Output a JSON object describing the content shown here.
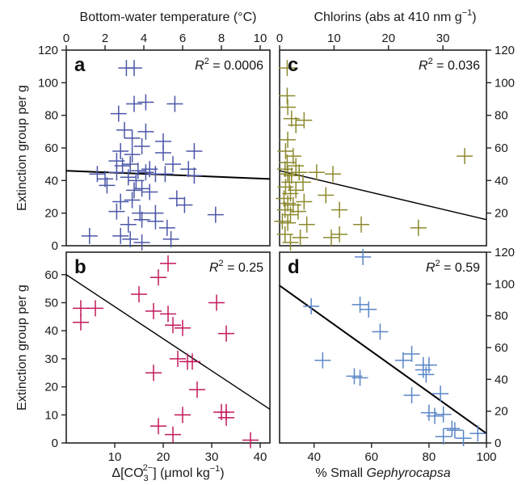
{
  "chart_data": [
    {
      "type": "scatter",
      "panel": "a",
      "top_xlabel": "Bottom-water temperature (°C)",
      "xlim": [
        0,
        10.5
      ],
      "ylim": [
        0,
        120
      ],
      "xticks": [
        0,
        2,
        4,
        6,
        8,
        10
      ],
      "yticks": [
        0,
        20,
        40,
        60,
        80,
        100,
        120
      ],
      "ylabel": "Extinction group per g",
      "color": "#4b57a8",
      "r2": "= 0.0006",
      "trend": [
        [
          0,
          46
        ],
        [
          10.5,
          41
        ]
      ],
      "points": [
        [
          3.1,
          109
        ],
        [
          3.5,
          109
        ],
        [
          2.7,
          81
        ],
        [
          3.5,
          87
        ],
        [
          4.1,
          88
        ],
        [
          5.6,
          87
        ],
        [
          3.0,
          71
        ],
        [
          4.1,
          70
        ],
        [
          3.4,
          66
        ],
        [
          5.0,
          64
        ],
        [
          3.9,
          61
        ],
        [
          2.8,
          58
        ],
        [
          3.4,
          56
        ],
        [
          5.0,
          57
        ],
        [
          6.6,
          58
        ],
        [
          2.6,
          52
        ],
        [
          2.9,
          49
        ],
        [
          3.3,
          50
        ],
        [
          3.7,
          46
        ],
        [
          4.3,
          47
        ],
        [
          5.5,
          50
        ],
        [
          6.3,
          47
        ],
        [
          1.6,
          44
        ],
        [
          2.6,
          45
        ],
        [
          3.2,
          42
        ],
        [
          4.1,
          45
        ],
        [
          4.6,
          44
        ],
        [
          5.1,
          44
        ],
        [
          6.6,
          43
        ],
        [
          2.0,
          41
        ],
        [
          3.6,
          40
        ],
        [
          2.1,
          37
        ],
        [
          3.5,
          34
        ],
        [
          3.9,
          35
        ],
        [
          4.3,
          33
        ],
        [
          2.8,
          27
        ],
        [
          3.4,
          28
        ],
        [
          6.1,
          25
        ],
        [
          5.7,
          29
        ],
        [
          2.6,
          21
        ],
        [
          3.8,
          20
        ],
        [
          4.6,
          20
        ],
        [
          7.7,
          19
        ],
        [
          3.9,
          16
        ],
        [
          4.6,
          15
        ],
        [
          3.2,
          13
        ],
        [
          5.2,
          11
        ],
        [
          1.2,
          6
        ],
        [
          2.8,
          6
        ],
        [
          3.3,
          4
        ],
        [
          5.4,
          4
        ],
        [
          3.9,
          2
        ]
      ]
    },
    {
      "type": "scatter",
      "panel": "c",
      "top_xlabel": "Chlorins (abs at 410 nm g−1)",
      "xlim": [
        0,
        38
      ],
      "ylim": [
        0,
        120
      ],
      "xticks": [
        0,
        10,
        20,
        30
      ],
      "yticks": [
        20,
        40,
        60,
        80,
        100,
        120
      ],
      "color": "#8c8a2e",
      "r2": "= 0.036",
      "trend": [
        [
          0,
          46
        ],
        [
          38,
          16
        ]
      ],
      "points": [
        [
          1.4,
          109
        ],
        [
          1.4,
          92
        ],
        [
          1.5,
          85
        ],
        [
          2.2,
          78
        ],
        [
          3.0,
          74
        ],
        [
          4.5,
          77
        ],
        [
          1.5,
          65
        ],
        [
          1.1,
          58
        ],
        [
          2.5,
          55
        ],
        [
          1.4,
          51
        ],
        [
          3.0,
          49
        ],
        [
          1.0,
          47
        ],
        [
          1.5,
          44
        ],
        [
          2.2,
          43
        ],
        [
          3.6,
          45
        ],
        [
          6.8,
          45
        ],
        [
          9.8,
          44
        ],
        [
          1.8,
          39
        ],
        [
          4.3,
          39
        ],
        [
          1.1,
          36
        ],
        [
          3.0,
          34
        ],
        [
          2.0,
          32
        ],
        [
          0.8,
          29
        ],
        [
          1.5,
          26
        ],
        [
          2.5,
          25
        ],
        [
          4.5,
          27
        ],
        [
          8.5,
          31
        ],
        [
          1.0,
          22
        ],
        [
          2.0,
          19
        ],
        [
          3.4,
          21
        ],
        [
          11.0,
          22
        ],
        [
          0.5,
          15
        ],
        [
          1.5,
          14
        ],
        [
          5.0,
          13
        ],
        [
          15.0,
          13
        ],
        [
          25.5,
          11
        ],
        [
          34.0,
          55
        ],
        [
          11.0,
          7
        ],
        [
          9.5,
          5
        ],
        [
          3.8,
          5
        ],
        [
          1.0,
          7
        ],
        [
          2.0,
          2
        ]
      ]
    },
    {
      "type": "scatter",
      "panel": "b",
      "xlabel": "Δ[CO32−] (μmol kg−1)",
      "xlim": [
        0,
        42
      ],
      "ylim": [
        0,
        68
      ],
      "xticks": [
        10,
        20,
        30,
        40
      ],
      "yticks": [
        0,
        10,
        20,
        30,
        40,
        50,
        60
      ],
      "ylabel": "Extinction group per g",
      "color": "#c2185b",
      "r2": "= 0.25",
      "trend": [
        [
          0,
          60
        ],
        [
          42,
          12
        ]
      ],
      "points": [
        [
          3,
          48
        ],
        [
          6,
          48
        ],
        [
          3,
          43
        ],
        [
          15,
          53
        ],
        [
          19,
          59
        ],
        [
          21,
          64
        ],
        [
          18,
          47
        ],
        [
          21,
          46
        ],
        [
          22,
          42
        ],
        [
          24,
          41
        ],
        [
          23,
          30
        ],
        [
          25,
          29
        ],
        [
          26,
          29
        ],
        [
          27,
          19
        ],
        [
          18,
          25
        ],
        [
          31,
          50
        ],
        [
          33,
          39
        ],
        [
          32,
          11
        ],
        [
          33,
          11
        ],
        [
          33,
          9
        ],
        [
          24,
          10
        ],
        [
          19,
          6
        ],
        [
          22,
          3
        ],
        [
          38,
          1
        ]
      ]
    },
    {
      "type": "scatter",
      "panel": "d",
      "xlabel": "% Small Gephyrocapsa",
      "xlim": [
        28,
        100
      ],
      "ylim": [
        0,
        120
      ],
      "xticks": [
        40,
        60,
        80,
        100
      ],
      "yticks": [
        0,
        20,
        40,
        60,
        80,
        100,
        120
      ],
      "color": "#5a86c6",
      "r2": "= 0.59",
      "trend": [
        [
          28,
          99
        ],
        [
          100,
          6
        ]
      ],
      "points": [
        [
          39,
          86
        ],
        [
          57,
          117
        ],
        [
          56,
          87
        ],
        [
          59,
          84
        ],
        [
          63,
          70
        ],
        [
          43,
          52
        ],
        [
          54,
          42
        ],
        [
          56,
          41
        ],
        [
          71,
          52
        ],
        [
          74,
          56
        ],
        [
          78,
          49
        ],
        [
          78,
          46
        ],
        [
          80,
          49
        ],
        [
          79,
          43
        ],
        [
          84,
          31
        ],
        [
          74,
          30
        ],
        [
          80,
          19
        ],
        [
          82,
          17
        ],
        [
          85,
          18
        ],
        [
          88,
          9
        ],
        [
          85,
          4
        ],
        [
          89,
          8
        ],
        [
          92,
          3
        ],
        [
          97,
          6
        ]
      ]
    }
  ]
}
